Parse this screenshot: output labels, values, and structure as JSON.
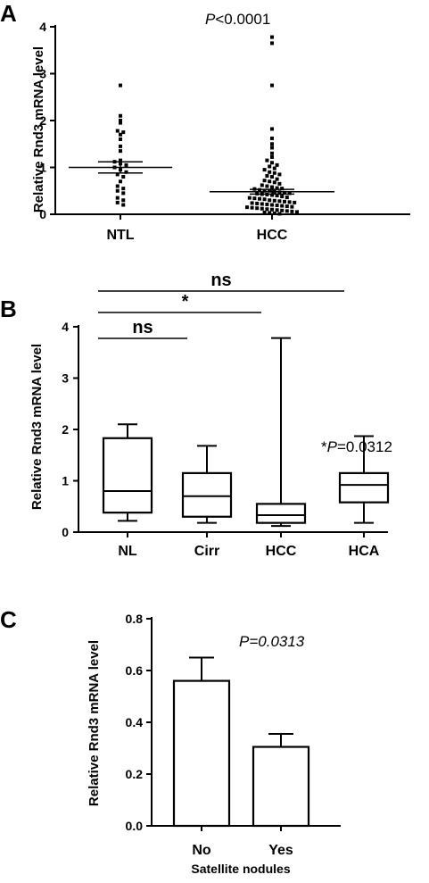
{
  "chart_data": [
    {
      "panel": "A",
      "type": "scatter",
      "ylabel": "Relative Rnd3 mRNA level",
      "ylim": [
        0,
        4
      ],
      "yticks": [
        0,
        1,
        2,
        3,
        4
      ],
      "categories": [
        "NTL",
        "HCC"
      ],
      "annotation": {
        "italic": "P",
        "rest": "<0.0001"
      },
      "groups": [
        {
          "name": "NTL",
          "mean": 1.0,
          "sem_low": 0.88,
          "sem_high": 1.12,
          "points": [
            2.75,
            2.1,
            2.0,
            1.95,
            1.78,
            1.75,
            1.7,
            1.6,
            1.45,
            1.35,
            1.15,
            1.12,
            1.08,
            1.05,
            1.0,
            0.95,
            0.9,
            0.85,
            0.8,
            0.7,
            0.6,
            0.55,
            0.5,
            0.45,
            0.35,
            0.3,
            0.25,
            0.2
          ]
        },
        {
          "name": "HCC",
          "mean": 0.48,
          "sem_low": 0.43,
          "sem_high": 0.53,
          "points": [
            3.78,
            3.65,
            2.75,
            1.82,
            1.62,
            1.5,
            1.42,
            1.3,
            1.22,
            1.15,
            1.1,
            1.05,
            1.02,
            0.98,
            0.95,
            0.9,
            0.88,
            0.85,
            0.82,
            0.8,
            0.75,
            0.72,
            0.7,
            0.68,
            0.65,
            0.62,
            0.6,
            0.58,
            0.56,
            0.55,
            0.54,
            0.52,
            0.5,
            0.5,
            0.48,
            0.47,
            0.46,
            0.45,
            0.44,
            0.43,
            0.42,
            0.41,
            0.4,
            0.38,
            0.36,
            0.35,
            0.34,
            0.33,
            0.32,
            0.3,
            0.29,
            0.28,
            0.27,
            0.26,
            0.25,
            0.24,
            0.23,
            0.22,
            0.21,
            0.2,
            0.19,
            0.18,
            0.17,
            0.16,
            0.15,
            0.14,
            0.13,
            0.12,
            0.11,
            0.1,
            0.09,
            0.08,
            0.07,
            0.06,
            0.05,
            0.04,
            0.03,
            0.02,
            0.01
          ]
        }
      ]
    },
    {
      "panel": "B",
      "type": "box",
      "ylabel": "Relative Rnd3 mRNA level",
      "ylim": [
        0,
        4
      ],
      "yticks": [
        0,
        1,
        2,
        3,
        4
      ],
      "categories": [
        "NL",
        "Cirr",
        "HCC",
        "HCA"
      ],
      "boxes": [
        {
          "name": "NL",
          "min": 0.22,
          "q1": 0.38,
          "median": 0.8,
          "q3": 1.83,
          "max": 2.1
        },
        {
          "name": "Cirr",
          "min": 0.18,
          "q1": 0.3,
          "median": 0.7,
          "q3": 1.15,
          "max": 1.68
        },
        {
          "name": "HCC",
          "min": 0.12,
          "q1": 0.18,
          "median": 0.33,
          "q3": 0.55,
          "max": 3.78
        },
        {
          "name": "HCA",
          "min": 0.18,
          "q1": 0.58,
          "median": 0.92,
          "q3": 1.15,
          "max": 1.87
        }
      ],
      "comparisons": [
        {
          "from": "NL",
          "to": "HCA",
          "label": "ns"
        },
        {
          "from": "NL",
          "to": "HCC",
          "label": "*"
        },
        {
          "from": "NL",
          "to": "Cirr",
          "label": "ns"
        }
      ],
      "annotation": {
        "prefix": "*",
        "italic": "P",
        "rest": "=0.0312"
      }
    },
    {
      "panel": "C",
      "type": "bar",
      "ylabel": "Relative Rnd3 mRNA level",
      "xlabel": "Satellite nodules",
      "ylim": [
        0,
        0.8
      ],
      "yticks": [
        "0.0",
        "0.2",
        "0.4",
        "0.6",
        "0.8"
      ],
      "categories": [
        "No",
        "Yes"
      ],
      "values": [
        0.56,
        0.305
      ],
      "errors": [
        0.09,
        0.05
      ],
      "annotation": "P=0.0313"
    }
  ]
}
